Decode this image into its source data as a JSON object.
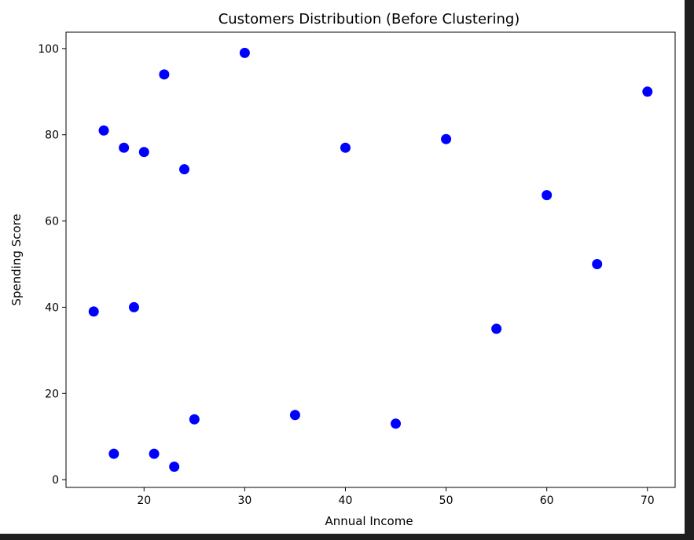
{
  "chart_data": {
    "type": "scatter",
    "title": "Customers Distribution (Before Clustering)",
    "xlabel": "Annual Income",
    "ylabel": "Spending Score",
    "xlim": [
      12.25,
      72.75
    ],
    "ylim": [
      -1.8,
      103.8
    ],
    "xticks": [
      20,
      30,
      40,
      50,
      60,
      70
    ],
    "yticks": [
      0,
      20,
      40,
      60,
      80,
      100
    ],
    "grid": false,
    "series": [
      {
        "color": "#0000ff",
        "points": [
          {
            "x": 15,
            "y": 39
          },
          {
            "x": 16,
            "y": 81
          },
          {
            "x": 17,
            "y": 6
          },
          {
            "x": 18,
            "y": 77
          },
          {
            "x": 19,
            "y": 40
          },
          {
            "x": 20,
            "y": 76
          },
          {
            "x": 21,
            "y": 6
          },
          {
            "x": 22,
            "y": 94
          },
          {
            "x": 23,
            "y": 3
          },
          {
            "x": 24,
            "y": 72
          },
          {
            "x": 25,
            "y": 14
          },
          {
            "x": 30,
            "y": 99
          },
          {
            "x": 35,
            "y": 15
          },
          {
            "x": 40,
            "y": 77
          },
          {
            "x": 45,
            "y": 13
          },
          {
            "x": 50,
            "y": 79
          },
          {
            "x": 55,
            "y": 35
          },
          {
            "x": 60,
            "y": 66
          },
          {
            "x": 65,
            "y": 50
          },
          {
            "x": 70,
            "y": 90
          }
        ]
      }
    ]
  }
}
